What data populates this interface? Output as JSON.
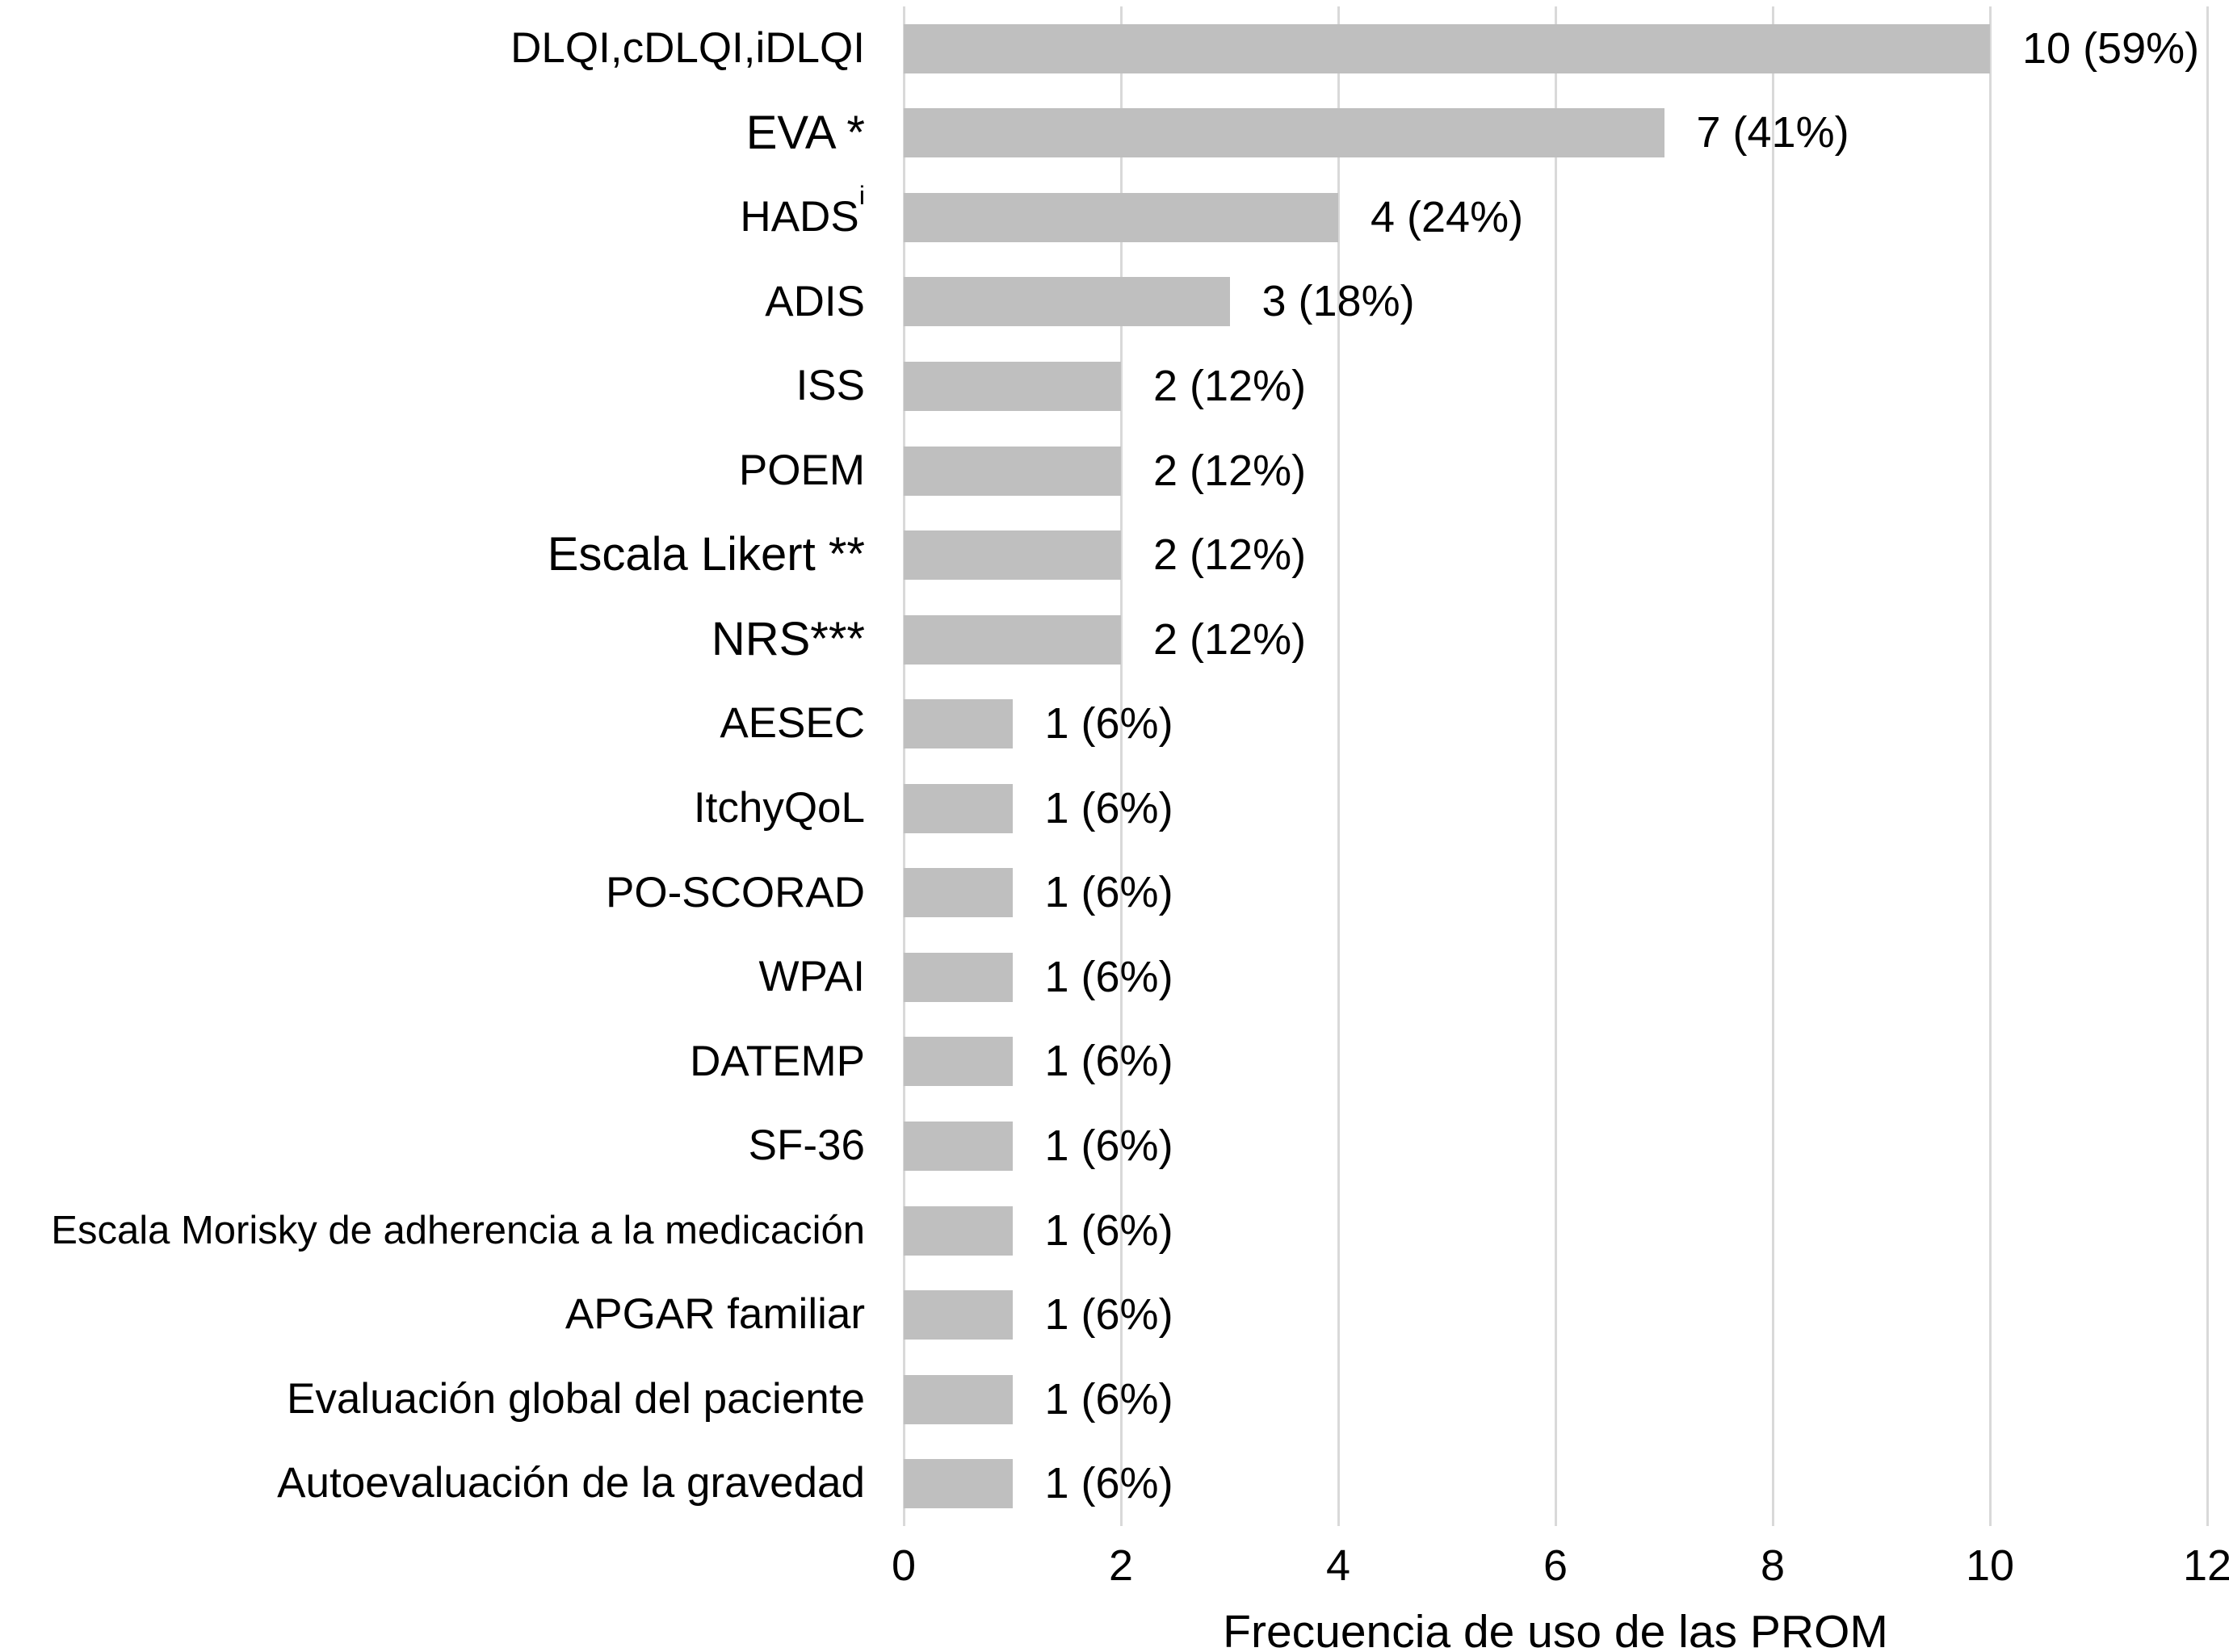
{
  "chart_data": {
    "type": "bar",
    "orientation": "horizontal",
    "title": "",
    "xlabel": "Frecuencia de uso de las PROM",
    "ylabel": "",
    "xlim": [
      0,
      12
    ],
    "xticks": [
      0,
      2,
      4,
      6,
      8,
      10,
      12
    ],
    "grid": "vertical-only",
    "legend": "none",
    "bar_color": "#bfbfbf",
    "gridline_color": "#d9d9d9",
    "text_color": "#000000",
    "categories": [
      "DLQI,cDLQI,iDLQI",
      "EVA *",
      "HADSⁱ",
      "ADIS",
      "ISS",
      "POEM",
      "Escala Likert **",
      "NRS***",
      "AESEC",
      "ItchyQoL",
      "PO-SCORAD",
      "WPAI",
      "DATEMP",
      "SF-36",
      "Escala Morisky de adherencia a la medicación",
      "APGAR familiar",
      "Evaluación global del paciente",
      "Autoevaluación de la gravedad"
    ],
    "values": [
      10,
      7,
      4,
      3,
      2,
      2,
      2,
      2,
      1,
      1,
      1,
      1,
      1,
      1,
      1,
      1,
      1,
      1
    ],
    "value_labels": [
      "10 (59%)",
      "7 (41%)",
      "4 (24%)",
      "3 (18%)",
      "2 (12%)",
      "2 (12%)",
      "2 (12%)",
      "2 (12%)",
      "1 (6%)",
      "1 (6%)",
      "1 (6%)",
      "1 (6%)",
      "1 (6%)",
      "1 (6%)",
      "1 (6%)",
      "1 (6%)",
      "1 (6%)",
      "1 (6%)"
    ],
    "items": [
      {
        "label": "DLQI,cDLQI,iDLQI",
        "sup": "",
        "value": 10,
        "value_label": "10 (59%)",
        "size": "md"
      },
      {
        "label": "EVA *",
        "sup": "",
        "value": 7,
        "value_label": "7 (41%)",
        "size": "lg"
      },
      {
        "label": "HADS",
        "sup": "i",
        "value": 4,
        "value_label": "4 (24%)",
        "size": "md"
      },
      {
        "label": "ADIS",
        "sup": "",
        "value": 3,
        "value_label": "3 (18%)",
        "size": "md"
      },
      {
        "label": "ISS",
        "sup": "",
        "value": 2,
        "value_label": "2 (12%)",
        "size": "md"
      },
      {
        "label": "POEM",
        "sup": "",
        "value": 2,
        "value_label": "2 (12%)",
        "size": "md"
      },
      {
        "label": "Escala Likert **",
        "sup": "",
        "value": 2,
        "value_label": "2 (12%)",
        "size": "lg"
      },
      {
        "label": "NRS***",
        "sup": "",
        "value": 2,
        "value_label": "2 (12%)",
        "size": "lg"
      },
      {
        "label": "AESEC",
        "sup": "",
        "value": 1,
        "value_label": "1 (6%)",
        "size": "md"
      },
      {
        "label": "ItchyQoL",
        "sup": "",
        "value": 1,
        "value_label": "1 (6%)",
        "size": "md"
      },
      {
        "label": "PO-SCORAD",
        "sup": "",
        "value": 1,
        "value_label": "1 (6%)",
        "size": "md"
      },
      {
        "label": "WPAI",
        "sup": "",
        "value": 1,
        "value_label": "1 (6%)",
        "size": "md"
      },
      {
        "label": "DATEMP",
        "sup": "",
        "value": 1,
        "value_label": "1 (6%)",
        "size": "md"
      },
      {
        "label": "SF-36",
        "sup": "",
        "value": 1,
        "value_label": "1 (6%)",
        "size": "md"
      },
      {
        "label": "Escala Morisky de adherencia a la medicación",
        "sup": "",
        "value": 1,
        "value_label": "1 (6%)",
        "size": "sm"
      },
      {
        "label": "APGAR familiar",
        "sup": "",
        "value": 1,
        "value_label": "1 (6%)",
        "size": "md"
      },
      {
        "label": "Evaluación global del paciente",
        "sup": "",
        "value": 1,
        "value_label": "1 (6%)",
        "size": "md"
      },
      {
        "label": "Autoevaluación de la gravedad",
        "sup": "",
        "value": 1,
        "value_label": "1 (6%)",
        "size": "md"
      }
    ]
  }
}
